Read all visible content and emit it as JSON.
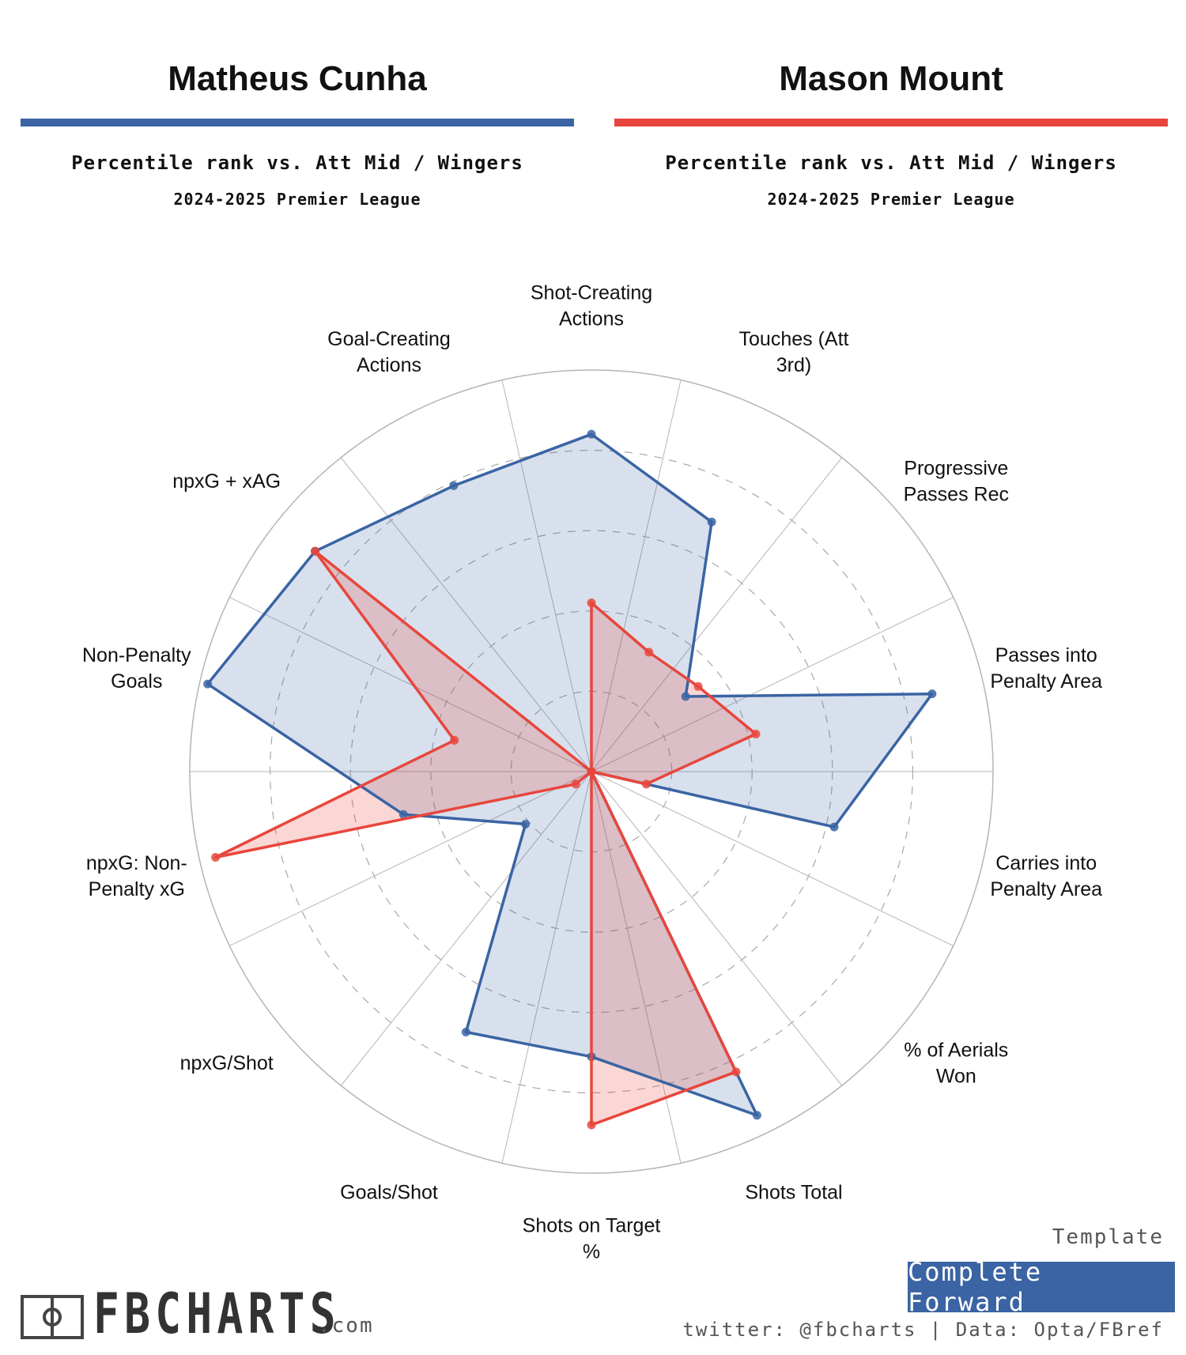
{
  "players": [
    {
      "name": "Matheus Cunha",
      "color": "#3a64a3",
      "fill": "rgba(58,100,163,0.20)",
      "subtitle": "Percentile rank vs. Att Mid / Wingers",
      "season": "2024-2025 Premier League"
    },
    {
      "name": "Mason Mount",
      "color": "#e8463c",
      "fill": "rgba(232,70,60,0.22)",
      "subtitle": "Percentile rank vs. Att Mid / Wingers",
      "season": "2024-2025 Premier League"
    }
  ],
  "chart_data": {
    "type": "radar",
    "range": [
      0,
      100
    ],
    "grid_levels": [
      20,
      40,
      60,
      80,
      100
    ],
    "categories": [
      [
        "Shot-Creating",
        "Actions"
      ],
      [
        "Touches (Att",
        "3rd)"
      ],
      [
        "Progressive",
        "Passes Rec"
      ],
      [
        "Passes into",
        "Penalty Area"
      ],
      [
        "Carries into",
        "Penalty Area"
      ],
      [
        "% of Aerials",
        "Won"
      ],
      [
        "Shots Total"
      ],
      [
        "Shots on Target",
        "%"
      ],
      [
        "Goals/Shot"
      ],
      [
        "npxG/Shot"
      ],
      [
        "npxG: Non-",
        "Penalty xG"
      ],
      [
        "Non-Penalty",
        "Goals"
      ],
      [
        "npxG + xAG"
      ],
      [
        "Goal-Creating",
        "Actions"
      ]
    ],
    "series": [
      {
        "name": "Matheus Cunha",
        "values": [
          84,
          69,
          30,
          87,
          62,
          0,
          95,
          71,
          72,
          21,
          48,
          98,
          88,
          79
        ]
      },
      {
        "name": "Mason Mount",
        "values": [
          42,
          33,
          34,
          42,
          14,
          0,
          83,
          88,
          0,
          5,
          96,
          35,
          88,
          0
        ]
      }
    ]
  },
  "template": {
    "label": "Template",
    "value": "Complete Forward"
  },
  "footer": {
    "credit": "twitter: @fbcharts | Data: Opta/FBref"
  },
  "brand": {
    "name": "FBCHARTS",
    "suffix": ".com",
    "icon": "pitch-icon"
  }
}
